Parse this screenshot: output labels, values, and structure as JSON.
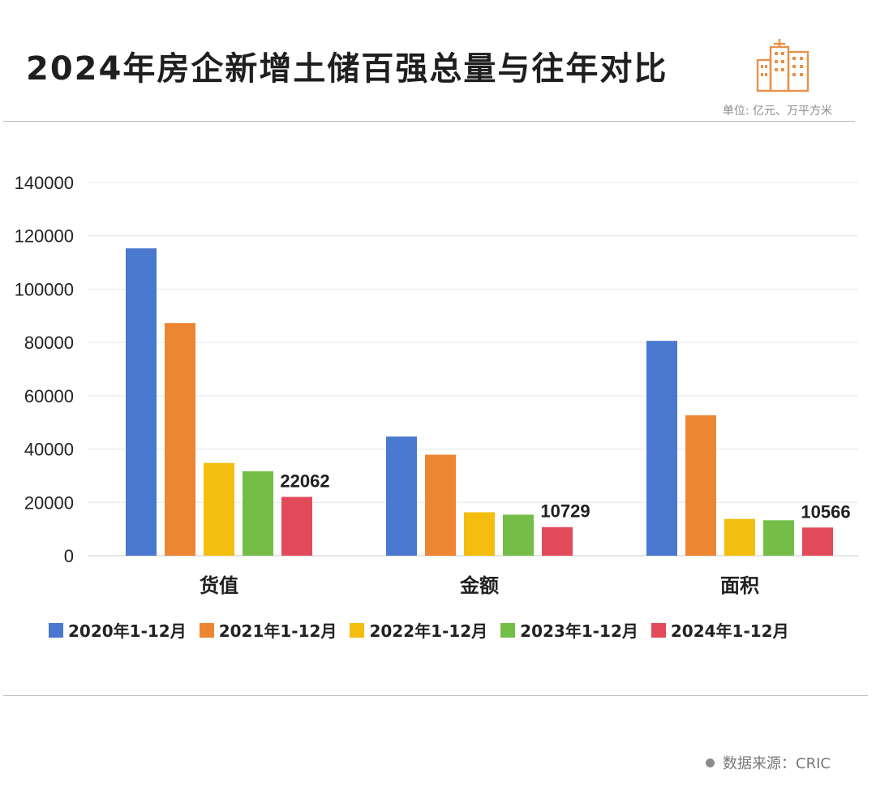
{
  "header": {
    "title": "2024年房企新增土储百强总量与往年对比",
    "unit": "单位: 亿元、万平方米",
    "logo_icon": "building-icon",
    "logo_color": "#e8914a"
  },
  "chart_data": {
    "type": "bar",
    "title": "2024年房企新增土储百强总量与往年对比",
    "categories": [
      "货值",
      "金额",
      "面积"
    ],
    "series": [
      {
        "name": "2020年1-12月",
        "color": "#4a78cf",
        "values": [
          115300,
          44700,
          80600
        ]
      },
      {
        "name": "2021年1-12月",
        "color": "#ed8632",
        "values": [
          87300,
          37900,
          52700
        ]
      },
      {
        "name": "2022年1-12月",
        "color": "#f3be0f",
        "values": [
          34800,
          16300,
          13800
        ]
      },
      {
        "name": "2023年1-12月",
        "color": "#74be47",
        "values": [
          31700,
          15400,
          13300
        ]
      },
      {
        "name": "2024年1-12月",
        "color": "#e24a5a",
        "values": [
          22062,
          10729,
          10566
        ]
      }
    ],
    "data_labels": {
      "series_index": 4,
      "labels": [
        "22062",
        "10729",
        "10566"
      ]
    },
    "yticks": [
      "0",
      "20000",
      "40000",
      "60000",
      "80000",
      "100000",
      "120000",
      "140000"
    ],
    "ylim": [
      0,
      140000
    ],
    "xlabel": "",
    "ylabel": "",
    "grid": true,
    "legend_position": "bottom"
  },
  "footer": {
    "source": "数据来源：CRIC"
  }
}
